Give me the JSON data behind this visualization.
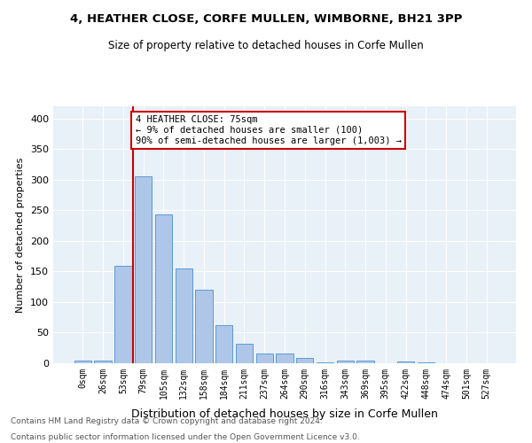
{
  "title1": "4, HEATHER CLOSE, CORFE MULLEN, WIMBORNE, BH21 3PP",
  "title2": "Size of property relative to detached houses in Corfe Mullen",
  "xlabel": "Distribution of detached houses by size in Corfe Mullen",
  "ylabel": "Number of detached properties",
  "bar_labels": [
    "0sqm",
    "26sqm",
    "53sqm",
    "79sqm",
    "105sqm",
    "132sqm",
    "158sqm",
    "184sqm",
    "211sqm",
    "237sqm",
    "264sqm",
    "290sqm",
    "316sqm",
    "343sqm",
    "369sqm",
    "395sqm",
    "422sqm",
    "448sqm",
    "474sqm",
    "501sqm",
    "527sqm"
  ],
  "bar_values": [
    4,
    4,
    160,
    306,
    243,
    155,
    120,
    62,
    32,
    16,
    16,
    9,
    2,
    4,
    4,
    0,
    3,
    2,
    0,
    0,
    0
  ],
  "bar_color": "#aec6e8",
  "bar_edge_color": "#5b9bd5",
  "vline_color": "#cc0000",
  "annotation_text": "4 HEATHER CLOSE: 75sqm\n← 9% of detached houses are smaller (100)\n90% of semi-detached houses are larger (1,003) →",
  "annotation_box_color": "#ffffff",
  "annotation_box_edge": "#cc0000",
  "ylim": [
    0,
    420
  ],
  "yticks": [
    0,
    50,
    100,
    150,
    200,
    250,
    300,
    350,
    400
  ],
  "background_color": "#e8f0f8",
  "footer1": "Contains HM Land Registry data © Crown copyright and database right 2024.",
  "footer2": "Contains public sector information licensed under the Open Government Licence v3.0."
}
